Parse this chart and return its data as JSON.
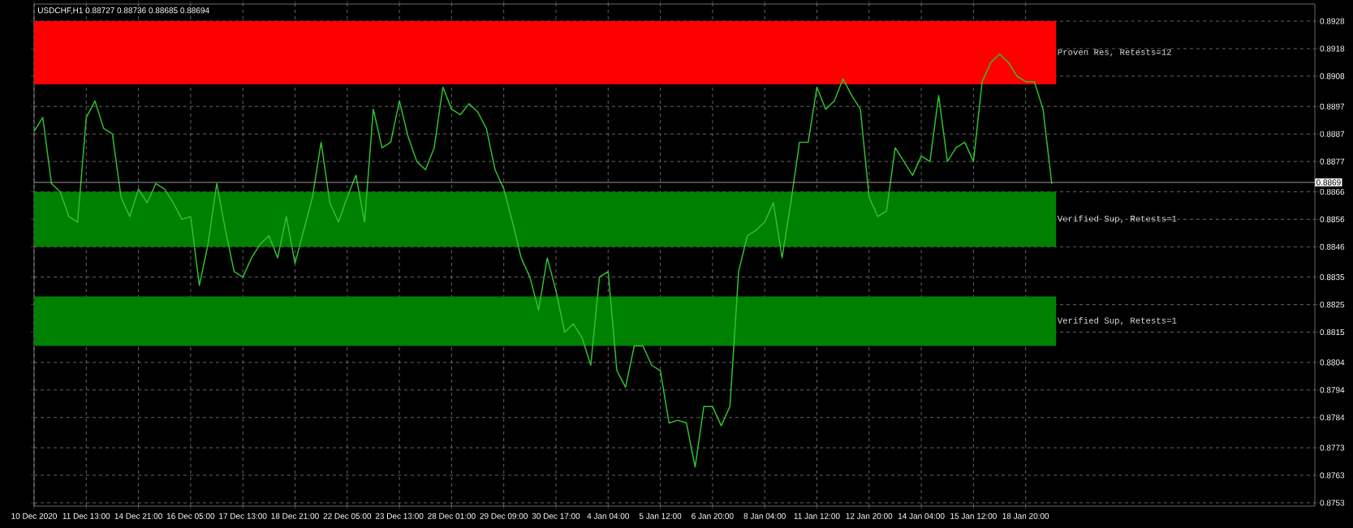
{
  "chart_data": {
    "type": "line",
    "title": "USDCHF,H1 0.88727 0.88736 0.88685 0.88694",
    "categories": [
      "10 Dec 2020",
      null,
      null,
      null,
      null,
      null,
      "11 Dec 13:00",
      null,
      null,
      null,
      null,
      null,
      "14 Dec 21:00",
      null,
      null,
      null,
      null,
      null,
      "16 Dec 05:00",
      null,
      null,
      null,
      null,
      null,
      "17 Dec 13:00",
      null,
      null,
      null,
      null,
      null,
      "18 Dec 21:00",
      null,
      null,
      null,
      null,
      null,
      "22 Dec 05:00",
      null,
      null,
      null,
      null,
      null,
      "23 Dec 13:00",
      null,
      null,
      null,
      null,
      null,
      "28 Dec 01:00",
      null,
      null,
      null,
      null,
      null,
      "29 Dec 09:00",
      null,
      null,
      null,
      null,
      null,
      "30 Dec 17:00",
      null,
      null,
      null,
      null,
      null,
      "4 Jan 04:00",
      null,
      null,
      null,
      null,
      null,
      "5 Jan 12:00",
      null,
      null,
      null,
      null,
      null,
      "6 Jan 20:00",
      null,
      null,
      null,
      null,
      null,
      "8 Jan 04:00",
      null,
      null,
      null,
      null,
      null,
      "11 Jan 12:00",
      null,
      null,
      null,
      null,
      null,
      "12 Jan 20:00",
      null,
      null,
      null,
      null,
      null,
      "14 Jan 04:00",
      null,
      null,
      null,
      null,
      null,
      "15 Jan 12:00",
      null,
      null,
      null,
      null,
      null,
      "18 Jan 20:00",
      null,
      null,
      null,
      null,
      null,
      null,
      null,
      null,
      null,
      null,
      null,
      null,
      null,
      null,
      null,
      null,
      null,
      null,
      null,
      null,
      null,
      null,
      null,
      null,
      null,
      null,
      null,
      null,
      null,
      null,
      null,
      null
    ],
    "series": [
      {
        "color": "#2ec42e",
        "values": [
          0.8888,
          0.8893,
          0.8869,
          0.8866,
          0.8857,
          0.8855,
          0.8893,
          0.8899,
          0.8889,
          0.8887,
          0.8864,
          0.8857,
          0.8867,
          0.8862,
          0.8869,
          0.8867,
          0.8862,
          0.8856,
          0.8857,
          0.8832,
          0.8847,
          0.8869,
          0.8852,
          0.8837,
          0.8835,
          0.8842,
          0.8847,
          0.885,
          0.8842,
          0.8857,
          0.884,
          0.8852,
          0.8864,
          0.8884,
          0.8862,
          0.8855,
          0.8864,
          0.8872,
          0.8855,
          0.8896,
          0.8882,
          0.8884,
          0.8899,
          0.8886,
          0.8877,
          0.8874,
          0.8882,
          0.8904,
          0.8896,
          0.8894,
          0.8898,
          0.8895,
          0.8889,
          0.8874,
          0.8867,
          0.8855,
          0.8842,
          0.8835,
          0.8823,
          0.8842,
          0.883,
          0.8815,
          0.8818,
          0.8813,
          0.8803,
          0.8835,
          0.8837,
          0.8801,
          0.8795,
          0.881,
          0.881,
          0.8803,
          0.8801,
          0.8782,
          0.8783,
          0.8782,
          0.8766,
          0.8788,
          0.8788,
          0.8781,
          0.8788,
          0.8837,
          0.885,
          0.8852,
          0.8855,
          0.8862,
          0.8842,
          0.8862,
          0.8884,
          0.8884,
          0.8904,
          0.8896,
          0.8899,
          0.8907,
          0.8901,
          0.8896,
          0.8864,
          0.8857,
          0.8859,
          0.8882,
          0.8877,
          0.8872,
          0.8879,
          0.8877,
          0.8901,
          0.8877,
          0.8882,
          0.8884,
          0.8877,
          0.8906,
          0.8913,
          0.8916,
          0.8913,
          0.8908,
          0.8906,
          0.8906,
          0.8896,
          0.8869,
          null,
          null,
          null,
          null,
          null,
          null,
          null,
          null,
          null,
          null,
          null,
          null,
          null,
          null,
          null,
          null,
          null,
          null,
          null,
          null,
          null,
          null,
          null,
          null,
          null,
          null,
          null,
          null,
          null
        ]
      }
    ],
    "ylim": [
      0.87518,
      0.89342
    ],
    "yticks": [
      0.8753,
      0.8763,
      0.8773,
      0.8784,
      0.8794,
      0.8804,
      0.8815,
      0.8825,
      0.8835,
      0.8846,
      0.8856,
      0.8866,
      0.8877,
      0.8887,
      0.8897,
      0.8908,
      0.8918,
      0.8928
    ],
    "bands": [
      {
        "axis": "y",
        "from": 0.8905,
        "to": 0.8928,
        "label": "Proven Res, Retests=12",
        "color": "#ff0000"
      },
      {
        "axis": "y",
        "from": 0.8846,
        "to": 0.8866,
        "label": "Verified Sup, Retests=1",
        "color": "#008000"
      },
      {
        "axis": "y",
        "from": 0.881,
        "to": 0.8828,
        "label": "Verified Sup, Retests=1",
        "color": "#008000"
      }
    ],
    "ref_lines": [
      {
        "axis": "y",
        "value": 0.88694,
        "label": "0.8869",
        "color": "#c0c0c0"
      }
    ],
    "grid": true
  }
}
